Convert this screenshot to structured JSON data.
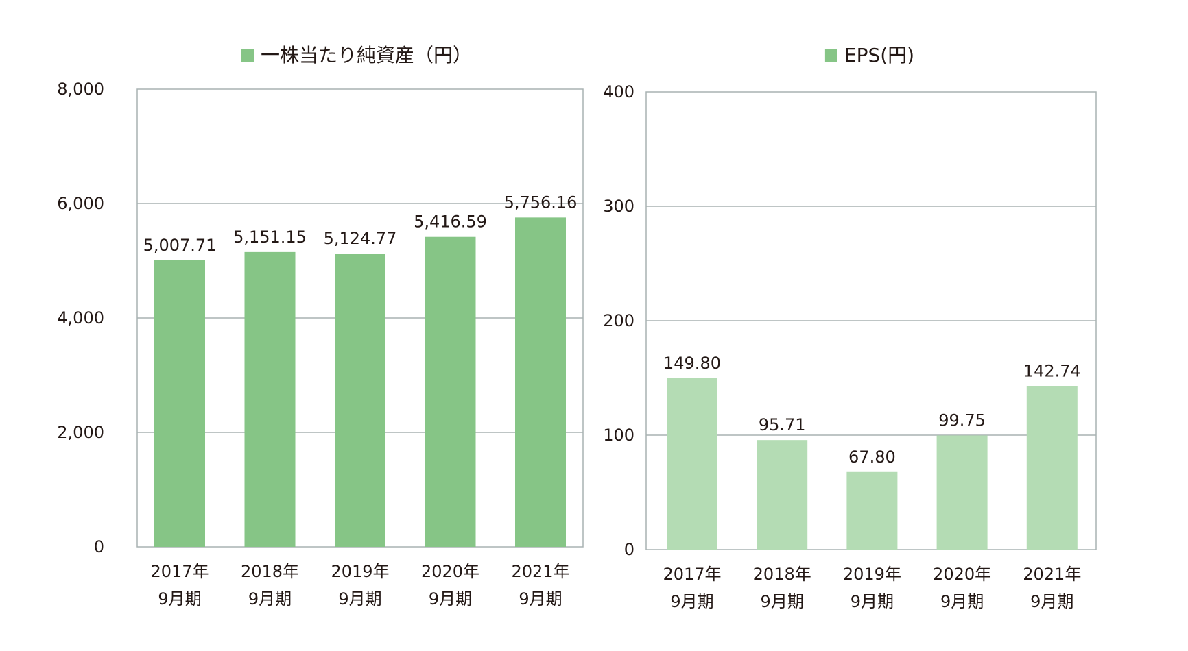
{
  "chart_data": [
    {
      "type": "bar",
      "title": "",
      "legend": "一株当たり純資産（円）",
      "legend_position": "top-center",
      "color": "#86c586",
      "categories": [
        [
          "2017年",
          "9月期"
        ],
        [
          "2018年",
          "9月期"
        ],
        [
          "2019年",
          "9月期"
        ],
        [
          "2020年",
          "9月期"
        ],
        [
          "2021年",
          "9月期"
        ]
      ],
      "values": [
        5007.71,
        5151.15,
        5124.77,
        5416.59,
        5756.16
      ],
      "value_labels": [
        "5,007.71",
        "5,151.15",
        "5,124.77",
        "5,416.59",
        "5,756.16"
      ],
      "ylim": [
        0,
        8000
      ],
      "yticks": [
        0,
        2000,
        4000,
        6000,
        8000
      ],
      "ytick_labels": [
        "0",
        "2,000",
        "4,000",
        "6,000",
        "8,000"
      ],
      "grid": true,
      "xlabel": "",
      "ylabel": ""
    },
    {
      "type": "bar",
      "title": "",
      "legend": "EPS(円)",
      "legend_position": "top-center",
      "color": "#b4dcb4",
      "legend_color": "#86c586",
      "categories": [
        [
          "2017年",
          "9月期"
        ],
        [
          "2018年",
          "9月期"
        ],
        [
          "2019年",
          "9月期"
        ],
        [
          "2020年",
          "9月期"
        ],
        [
          "2021年",
          "9月期"
        ]
      ],
      "values": [
        149.8,
        95.71,
        67.8,
        99.75,
        142.74
      ],
      "value_labels": [
        "149.80",
        "95.71",
        "67.80",
        "99.75",
        "142.74"
      ],
      "ylim": [
        0,
        400
      ],
      "yticks": [
        0,
        100,
        200,
        300,
        400
      ],
      "ytick_labels": [
        "0",
        "100",
        "200",
        "300",
        "400"
      ],
      "grid": true,
      "xlabel": "",
      "ylabel": ""
    }
  ]
}
